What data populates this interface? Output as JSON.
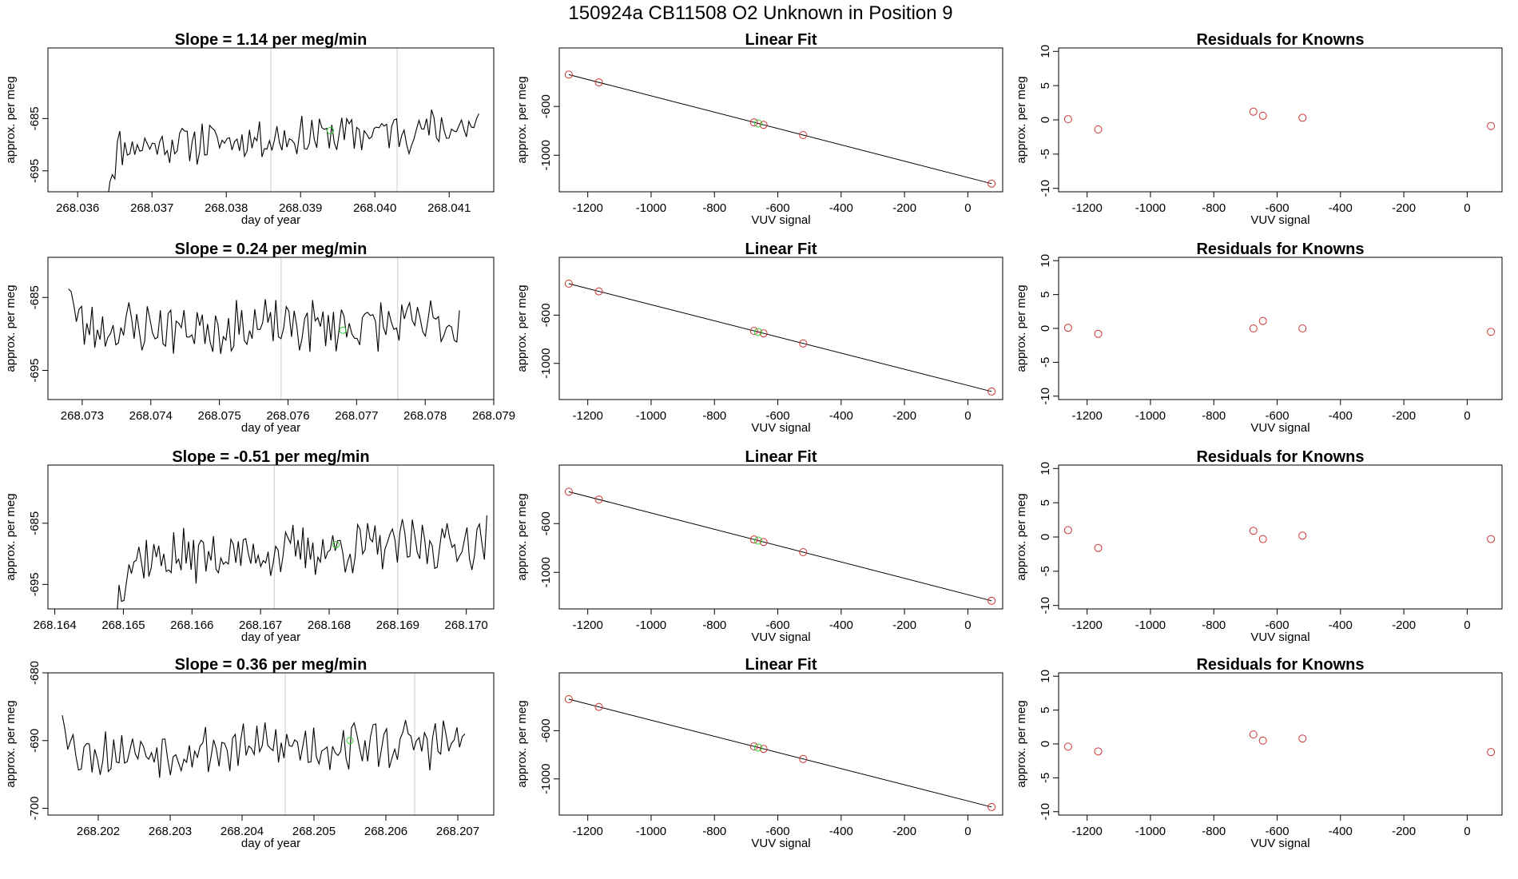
{
  "figure": {
    "title": "150924a      CB11508    O2 Unknown in Position  9"
  },
  "colors": {
    "trace": "#000000",
    "frame": "#000000",
    "marker_line": "#cccccc",
    "known_points": "#cc3333",
    "unknown_points": "#33cc33",
    "fit_line": "#000000"
  },
  "chart_data": [
    {
      "panel": "time-series",
      "row": 1,
      "type": "line",
      "title": "Slope =  1.14  per meg/min",
      "xlabel": "day of year",
      "ylabel": "approx. per meg",
      "xlim": [
        268.0356,
        268.0416
      ],
      "ylim": [
        -699,
        -671.5
      ],
      "xticks": [
        "268.036",
        "268.037",
        "268.038",
        "268.039",
        "268.040",
        "268.041"
      ],
      "xtick_values": [
        268.036,
        268.037,
        268.038,
        268.039,
        268.04,
        268.041
      ],
      "yticks": [
        "-685",
        "-695"
      ],
      "ytick_values": [
        -685,
        -695
      ],
      "markers": [
        268.0386,
        268.0403
      ],
      "unknown_point": {
        "x": 268.0394,
        "y": -687.3
      },
      "trace_start": 268.0364,
      "trace_end": 268.0414,
      "trace_mean": -688.5,
      "trace_trend": 4.0,
      "trace_noise": 1.4,
      "trace_startup": "rise",
      "trace_seed": 11
    },
    {
      "panel": "linear-fit",
      "row": 1,
      "type": "scatter",
      "title": "Linear Fit",
      "xlabel": "VUV signal",
      "ylabel": "approx. per meg",
      "xlim": [
        -1290,
        110
      ],
      "ylim": [
        -1300,
        -120
      ],
      "xticks": [
        "-1200",
        "-1000",
        "-800",
        "-600",
        "-400",
        "-200",
        "0"
      ],
      "xtick_values": [
        -1200,
        -1000,
        -800,
        -600,
        -400,
        -200,
        0
      ],
      "yticks": [
        "-600",
        "-1000"
      ],
      "ytick_values": [
        -600,
        -1000
      ],
      "fit": {
        "slope": -0.67,
        "intercept": -1183
      },
      "knowns": [
        -1260,
        -1165,
        -675,
        -645,
        -520,
        75
      ],
      "unknowns": [
        -662
      ]
    },
    {
      "panel": "residuals",
      "row": 1,
      "type": "scatter",
      "title": "Residuals for Knowns",
      "xlabel": "VUV signal",
      "ylabel": "approx. per meg",
      "xlim": [
        -1290,
        110
      ],
      "ylim": [
        -10.5,
        10.5
      ],
      "xticks": [
        "-1200",
        "-1000",
        "-800",
        "-600",
        "-400",
        "-200",
        "0"
      ],
      "xtick_values": [
        -1200,
        -1000,
        -800,
        -600,
        -400,
        -200,
        0
      ],
      "yticks": [
        "10",
        "5",
        "0",
        "-5",
        "-10"
      ],
      "ytick_values": [
        10,
        5,
        0,
        -5,
        -10
      ],
      "x": [
        -1260,
        -1165,
        -675,
        -645,
        -520,
        75
      ],
      "y": [
        0.1,
        -1.4,
        1.2,
        0.6,
        0.3,
        -0.9
      ]
    },
    {
      "panel": "time-series",
      "row": 2,
      "type": "line",
      "title": "Slope =  0.24  per meg/min",
      "xlabel": "day of year",
      "ylabel": "approx. per meg",
      "xlim": [
        268.0725,
        268.079
      ],
      "ylim": [
        -699,
        -679.5
      ],
      "xticks": [
        "268.073",
        "268.074",
        "268.075",
        "268.076",
        "268.077",
        "268.078",
        "268.079"
      ],
      "xtick_values": [
        268.073,
        268.074,
        268.075,
        268.076,
        268.077,
        268.078,
        268.079
      ],
      "yticks": [
        "-685",
        "-695"
      ],
      "ytick_values": [
        -685,
        -695
      ],
      "markers": [
        268.0759,
        268.0776
      ],
      "unknown_point": {
        "x": 268.0768,
        "y": -689.5
      },
      "trace_start": 268.0728,
      "trace_end": 268.0785,
      "trace_mean": -689.0,
      "trace_trend": 0.5,
      "trace_noise": 1.3,
      "trace_startup": "fall",
      "trace_seed": 23
    },
    {
      "panel": "linear-fit",
      "row": 2,
      "type": "scatter",
      "title": "Linear Fit",
      "xlabel": "VUV signal",
      "ylabel": "approx. per meg",
      "xlim": [
        -1290,
        110
      ],
      "ylim": [
        -1300,
        -120
      ],
      "xticks": [
        "-1200",
        "-1000",
        "-800",
        "-600",
        "-400",
        "-200",
        "0"
      ],
      "xtick_values": [
        -1200,
        -1000,
        -800,
        -600,
        -400,
        -200,
        0
      ],
      "yticks": [
        "-600",
        "-1000"
      ],
      "ytick_values": [
        -600,
        -1000
      ],
      "fit": {
        "slope": -0.67,
        "intercept": -1183
      },
      "knowns": [
        -1260,
        -1165,
        -675,
        -645,
        -520,
        75
      ],
      "unknowns": [
        -662
      ]
    },
    {
      "panel": "residuals",
      "row": 2,
      "type": "scatter",
      "title": "Residuals for Knowns",
      "xlabel": "VUV signal",
      "ylabel": "approx. per meg",
      "xlim": [
        -1290,
        110
      ],
      "ylim": [
        -10.5,
        10.5
      ],
      "xticks": [
        "-1200",
        "-1000",
        "-800",
        "-600",
        "-400",
        "-200",
        "0"
      ],
      "xtick_values": [
        -1200,
        -1000,
        -800,
        -600,
        -400,
        -200,
        0
      ],
      "yticks": [
        "10",
        "5",
        "0",
        "-5",
        "-10"
      ],
      "ytick_values": [
        10,
        5,
        0,
        -5,
        -10
      ],
      "x": [
        -1260,
        -1165,
        -675,
        -645,
        -520,
        75
      ],
      "y": [
        0.1,
        -0.8,
        0.0,
        1.1,
        0.0,
        -0.5
      ]
    },
    {
      "panel": "time-series",
      "row": 3,
      "type": "line",
      "title": "Slope =  -0.51  per meg/min",
      "xlabel": "day of year",
      "ylabel": "approx. per meg",
      "xlim": [
        268.1639,
        268.1704
      ],
      "ylim": [
        -699,
        -675.5
      ],
      "xticks": [
        "268.164",
        "268.165",
        "268.166",
        "268.167",
        "268.168",
        "268.169",
        "268.170"
      ],
      "xtick_values": [
        268.164,
        268.165,
        268.166,
        268.167,
        268.168,
        268.169,
        268.17
      ],
      "yticks": [
        "-685",
        "-695"
      ],
      "ytick_values": [
        -685,
        -695
      ],
      "markers": [
        268.1672,
        268.169
      ],
      "unknown_point": {
        "x": 268.1681,
        "y": -688.5
      },
      "trace_start": 268.1649,
      "trace_end": 268.1703,
      "trace_mean": -689.5,
      "trace_trend": 3.0,
      "trace_noise": 1.5,
      "trace_startup": "rise",
      "trace_seed": 37
    },
    {
      "panel": "linear-fit",
      "row": 3,
      "type": "scatter",
      "title": "Linear Fit",
      "xlabel": "VUV signal",
      "ylabel": "approx. per meg",
      "xlim": [
        -1290,
        110
      ],
      "ylim": [
        -1300,
        -120
      ],
      "xticks": [
        "-1200",
        "-1000",
        "-800",
        "-600",
        "-400",
        "-200",
        "0"
      ],
      "xtick_values": [
        -1200,
        -1000,
        -800,
        -600,
        -400,
        -200,
        0
      ],
      "yticks": [
        "-600",
        "-1000"
      ],
      "ytick_values": [
        -600,
        -1000
      ],
      "fit": {
        "slope": -0.67,
        "intercept": -1183
      },
      "knowns": [
        -1260,
        -1165,
        -675,
        -645,
        -520,
        75
      ],
      "unknowns": [
        -662
      ]
    },
    {
      "panel": "residuals",
      "row": 3,
      "type": "scatter",
      "title": "Residuals for Knowns",
      "xlabel": "VUV signal",
      "ylabel": "approx. per meg",
      "xlim": [
        -1290,
        110
      ],
      "ylim": [
        -10.5,
        10.5
      ],
      "xticks": [
        "-1200",
        "-1000",
        "-800",
        "-600",
        "-400",
        "-200",
        "0"
      ],
      "xtick_values": [
        -1200,
        -1000,
        -800,
        -600,
        -400,
        -200,
        0
      ],
      "yticks": [
        "10",
        "5",
        "0",
        "-5",
        "-10"
      ],
      "ytick_values": [
        10,
        5,
        0,
        -5,
        -10
      ],
      "x": [
        -1260,
        -1165,
        -675,
        -645,
        -520,
        75
      ],
      "y": [
        1.0,
        -1.6,
        0.9,
        -0.3,
        0.2,
        -0.3
      ]
    },
    {
      "panel": "time-series",
      "row": 4,
      "type": "line",
      "title": "Slope =  0.36  per meg/min",
      "xlabel": "day of year",
      "ylabel": "approx. per meg",
      "xlim": [
        268.2013,
        268.2075
      ],
      "ylim": [
        -701,
        -680
      ],
      "xticks": [
        "268.202",
        "268.203",
        "268.204",
        "268.205",
        "268.206",
        "268.207"
      ],
      "xtick_values": [
        268.202,
        268.203,
        268.204,
        268.205,
        268.206,
        268.207
      ],
      "yticks": [
        "-680",
        "-690",
        "-700"
      ],
      "ytick_values": [
        -680,
        -690,
        -700
      ],
      "markers": [
        268.2046,
        268.2064
      ],
      "unknown_point": {
        "x": 268.2055,
        "y": -690.0
      },
      "trace_start": 268.2015,
      "trace_end": 268.2071,
      "trace_mean": -691.0,
      "trace_trend": 1.5,
      "trace_noise": 1.3,
      "trace_startup": "fall",
      "trace_seed": 53
    },
    {
      "panel": "linear-fit",
      "row": 4,
      "type": "scatter",
      "title": "Linear Fit",
      "xlabel": "VUV signal",
      "ylabel": "approx. per meg",
      "xlim": [
        -1290,
        110
      ],
      "ylim": [
        -1300,
        -120
      ],
      "xticks": [
        "-1200",
        "-1000",
        "-800",
        "-600",
        "-400",
        "-200",
        "0"
      ],
      "xtick_values": [
        -1200,
        -1000,
        -800,
        -600,
        -400,
        -200,
        0
      ],
      "yticks": [
        "-600",
        "-1000"
      ],
      "ytick_values": [
        -600,
        -1000
      ],
      "fit": {
        "slope": -0.67,
        "intercept": -1183
      },
      "knowns": [
        -1260,
        -1165,
        -675,
        -645,
        -520,
        75
      ],
      "unknowns": [
        -662
      ]
    },
    {
      "panel": "residuals",
      "row": 4,
      "type": "scatter",
      "title": "Residuals for Knowns",
      "xlabel": "VUV signal",
      "ylabel": "approx. per meg",
      "xlim": [
        -1290,
        110
      ],
      "ylim": [
        -10.5,
        10.5
      ],
      "xticks": [
        "-1200",
        "-1000",
        "-800",
        "-600",
        "-400",
        "-200",
        "0"
      ],
      "xtick_values": [
        -1200,
        -1000,
        -800,
        -600,
        -400,
        -200,
        0
      ],
      "yticks": [
        "10",
        "5",
        "0",
        "-5",
        "-10"
      ],
      "ytick_values": [
        10,
        5,
        0,
        -5,
        -10
      ],
      "x": [
        -1260,
        -1165,
        -675,
        -645,
        -520,
        75
      ],
      "y": [
        -0.4,
        -1.1,
        1.4,
        0.5,
        0.8,
        -1.2
      ]
    }
  ]
}
